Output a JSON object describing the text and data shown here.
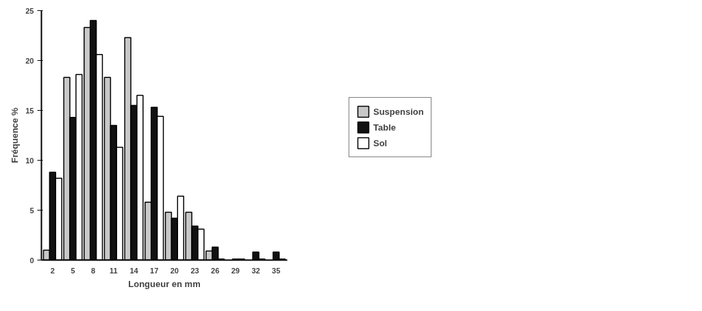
{
  "chart_data": {
    "type": "bar",
    "xlabel": "Longueur en mm",
    "ylabel": "Fréquence %",
    "categories": [
      "2",
      "5",
      "8",
      "11",
      "14",
      "17",
      "20",
      "23",
      "26",
      "29",
      "32",
      "35"
    ],
    "series": [
      {
        "name": "Suspension",
        "color": "#c8c8c8",
        "values": [
          1,
          18.3,
          23.3,
          18.3,
          22.3,
          5.8,
          4.8,
          4.8,
          0.9,
          null,
          null,
          null
        ]
      },
      {
        "name": "Table",
        "color": "#111111",
        "values": [
          8.8,
          14.3,
          24,
          13.5,
          15.5,
          15.3,
          4.2,
          3.4,
          1.3,
          0.1,
          0.8,
          0.8
        ]
      },
      {
        "name": "Sol",
        "color": "#ffffff",
        "values": [
          8.2,
          18.6,
          20.6,
          11.3,
          16.5,
          14.4,
          6.4,
          3.1,
          0.1,
          0.1,
          0.1,
          0.1
        ]
      }
    ],
    "ylim": [
      0,
      25
    ],
    "yticks": [
      0,
      5,
      10,
      15,
      20,
      25
    ],
    "grid": false,
    "legend": "right"
  }
}
